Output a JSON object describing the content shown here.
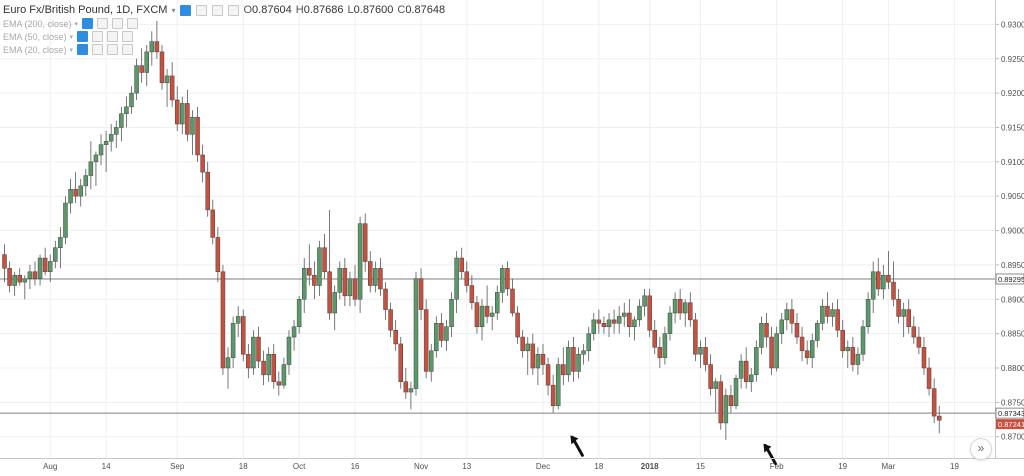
{
  "legend": {
    "symbol": "Euro Fx/British Pound, 1D, FXCM",
    "ohlc": [
      {
        "k": "O",
        "v": "0.87604"
      },
      {
        "k": "H",
        "v": "0.87686"
      },
      {
        "k": "L",
        "v": "0.87600"
      },
      {
        "k": "C",
        "v": "0.87648"
      }
    ],
    "indicators": [
      "EMA (200, close)",
      "EMA (50, close)",
      "EMA (20, close)"
    ]
  },
  "scroll_button": "»",
  "colors": {
    "up": "#5b9a68",
    "down": "#c8503e",
    "grid": "#efefef",
    "axis_text": "#4f4f4f",
    "hline": "#808080",
    "arrow": "#111111"
  },
  "chart_data": {
    "type": "candlestick",
    "title": "Euro Fx/British Pound, 1D, FXCM",
    "ylim": [
      0.8669,
      0.93355
    ],
    "y_ticks": [
      "0.93000",
      "0.92500",
      "0.92000",
      "0.91500",
      "0.91000",
      "0.90500",
      "0.90000",
      "0.89500",
      "0.89000",
      "0.88500",
      "0.88000",
      "0.87500",
      "0.87000"
    ],
    "x_labels": [
      {
        "label": "Aug",
        "index": 9
      },
      {
        "label": "14",
        "index": 20
      },
      {
        "label": "Sep",
        "index": 34
      },
      {
        "label": "18",
        "index": 47
      },
      {
        "label": "Oct",
        "index": 58
      },
      {
        "label": "16",
        "index": 69
      },
      {
        "label": "Nov",
        "index": 82
      },
      {
        "label": "13",
        "index": 91
      },
      {
        "label": "Dec",
        "index": 106
      },
      {
        "label": "18",
        "index": 117
      },
      {
        "label": "2018",
        "index": 127
      },
      {
        "label": "15",
        "index": 137
      },
      {
        "label": "Feb",
        "index": 152
      },
      {
        "label": "19",
        "index": 165
      },
      {
        "label": "Mar",
        "index": 174
      },
      {
        "label": "19",
        "index": 187
      }
    ],
    "horizontal_levels": [
      {
        "value": 0.89295,
        "label": "0.89295"
      },
      {
        "value": 0.87343,
        "label": "0.87343"
      }
    ],
    "last_price": {
      "value": 0.87241,
      "label": "0.87241"
    },
    "candles": [
      [
        0.8965,
        0.898,
        0.8925,
        0.8945
      ],
      [
        0.8945,
        0.8955,
        0.891,
        0.892
      ],
      [
        0.892,
        0.894,
        0.8905,
        0.8935
      ],
      [
        0.8935,
        0.8945,
        0.892,
        0.8925
      ],
      [
        0.8925,
        0.8935,
        0.89,
        0.893
      ],
      [
        0.893,
        0.895,
        0.8915,
        0.894
      ],
      [
        0.894,
        0.8955,
        0.892,
        0.893
      ],
      [
        0.893,
        0.8965,
        0.892,
        0.896
      ],
      [
        0.896,
        0.8975,
        0.8935,
        0.894
      ],
      [
        0.894,
        0.8965,
        0.8925,
        0.8955
      ],
      [
        0.8955,
        0.8985,
        0.8945,
        0.8975
      ],
      [
        0.8975,
        0.9005,
        0.8945,
        0.899
      ],
      [
        0.899,
        0.905,
        0.898,
        0.904
      ],
      [
        0.904,
        0.9075,
        0.9025,
        0.906
      ],
      [
        0.906,
        0.9085,
        0.904,
        0.905
      ],
      [
        0.905,
        0.9075,
        0.9035,
        0.9065
      ],
      [
        0.9065,
        0.909,
        0.905,
        0.908
      ],
      [
        0.908,
        0.913,
        0.906,
        0.91
      ],
      [
        0.91,
        0.9115,
        0.9065,
        0.911
      ],
      [
        0.911,
        0.914,
        0.9095,
        0.9125
      ],
      [
        0.9125,
        0.9145,
        0.9085,
        0.913
      ],
      [
        0.913,
        0.9155,
        0.9115,
        0.914
      ],
      [
        0.914,
        0.916,
        0.912,
        0.915
      ],
      [
        0.915,
        0.918,
        0.913,
        0.917
      ],
      [
        0.917,
        0.9195,
        0.915,
        0.918
      ],
      [
        0.918,
        0.921,
        0.917,
        0.92
      ],
      [
        0.92,
        0.925,
        0.919,
        0.924
      ],
      [
        0.924,
        0.9265,
        0.9215,
        0.923
      ],
      [
        0.923,
        0.927,
        0.921,
        0.926
      ],
      [
        0.926,
        0.929,
        0.924,
        0.9275
      ],
      [
        0.9275,
        0.9305,
        0.925,
        0.926
      ],
      [
        0.926,
        0.927,
        0.9205,
        0.9215
      ],
      [
        0.9215,
        0.9235,
        0.918,
        0.9225
      ],
      [
        0.9225,
        0.9245,
        0.918,
        0.919
      ],
      [
        0.919,
        0.921,
        0.9145,
        0.9155
      ],
      [
        0.9155,
        0.9195,
        0.914,
        0.9185
      ],
      [
        0.9185,
        0.9205,
        0.913,
        0.914
      ],
      [
        0.914,
        0.9175,
        0.911,
        0.9165
      ],
      [
        0.9165,
        0.918,
        0.91,
        0.911
      ],
      [
        0.911,
        0.9125,
        0.907,
        0.9085
      ],
      [
        0.9085,
        0.91,
        0.902,
        0.903
      ],
      [
        0.903,
        0.9045,
        0.898,
        0.899
      ],
      [
        0.899,
        0.9005,
        0.8925,
        0.894
      ],
      [
        0.894,
        0.895,
        0.879,
        0.88
      ],
      [
        0.88,
        0.883,
        0.877,
        0.8815
      ],
      [
        0.8815,
        0.8875,
        0.88,
        0.8865
      ],
      [
        0.8865,
        0.889,
        0.8845,
        0.8875
      ],
      [
        0.8875,
        0.8885,
        0.881,
        0.882
      ],
      [
        0.882,
        0.8835,
        0.8785,
        0.88
      ],
      [
        0.88,
        0.8855,
        0.879,
        0.8845
      ],
      [
        0.8845,
        0.886,
        0.88,
        0.881
      ],
      [
        0.881,
        0.8825,
        0.8775,
        0.879
      ],
      [
        0.879,
        0.883,
        0.878,
        0.882
      ],
      [
        0.882,
        0.8835,
        0.877,
        0.878
      ],
      [
        0.878,
        0.8795,
        0.876,
        0.8775
      ],
      [
        0.8775,
        0.8815,
        0.877,
        0.8805
      ],
      [
        0.8805,
        0.8855,
        0.879,
        0.8845
      ],
      [
        0.8845,
        0.887,
        0.8825,
        0.886
      ],
      [
        0.886,
        0.8905,
        0.885,
        0.89
      ],
      [
        0.89,
        0.896,
        0.888,
        0.8945
      ],
      [
        0.8945,
        0.898,
        0.892,
        0.8935
      ],
      [
        0.8935,
        0.8955,
        0.89,
        0.892
      ],
      [
        0.892,
        0.8985,
        0.8905,
        0.8975
      ],
      [
        0.8975,
        0.8995,
        0.893,
        0.894
      ],
      [
        0.894,
        0.903,
        0.887,
        0.888
      ],
      [
        0.888,
        0.892,
        0.8855,
        0.891
      ],
      [
        0.891,
        0.8955,
        0.89,
        0.8945
      ],
      [
        0.8945,
        0.896,
        0.889,
        0.8905
      ],
      [
        0.8905,
        0.894,
        0.889,
        0.893
      ],
      [
        0.893,
        0.895,
        0.889,
        0.89
      ],
      [
        0.89,
        0.902,
        0.888,
        0.901
      ],
      [
        0.901,
        0.9025,
        0.894,
        0.8955
      ],
      [
        0.8955,
        0.897,
        0.891,
        0.892
      ],
      [
        0.892,
        0.8955,
        0.891,
        0.8945
      ],
      [
        0.8945,
        0.896,
        0.8905,
        0.8915
      ],
      [
        0.8915,
        0.8925,
        0.887,
        0.8885
      ],
      [
        0.8885,
        0.8895,
        0.8845,
        0.8855
      ],
      [
        0.8855,
        0.887,
        0.8825,
        0.8835
      ],
      [
        0.8835,
        0.8845,
        0.877,
        0.878
      ],
      [
        0.878,
        0.88,
        0.8755,
        0.8765
      ],
      [
        0.8765,
        0.878,
        0.874,
        0.877
      ],
      [
        0.877,
        0.894,
        0.876,
        0.893
      ],
      [
        0.893,
        0.8945,
        0.887,
        0.8885
      ],
      [
        0.8885,
        0.89,
        0.8785,
        0.8795
      ],
      [
        0.8795,
        0.8835,
        0.878,
        0.8825
      ],
      [
        0.8825,
        0.8875,
        0.8815,
        0.8865
      ],
      [
        0.8865,
        0.888,
        0.883,
        0.884
      ],
      [
        0.884,
        0.887,
        0.8825,
        0.886
      ],
      [
        0.886,
        0.891,
        0.8845,
        0.89
      ],
      [
        0.89,
        0.897,
        0.888,
        0.896
      ],
      [
        0.896,
        0.8975,
        0.893,
        0.894
      ],
      [
        0.894,
        0.8955,
        0.891,
        0.892
      ],
      [
        0.892,
        0.8935,
        0.8885,
        0.8895
      ],
      [
        0.8895,
        0.8905,
        0.885,
        0.886
      ],
      [
        0.886,
        0.89,
        0.884,
        0.889
      ],
      [
        0.889,
        0.892,
        0.8865,
        0.8875
      ],
      [
        0.8875,
        0.889,
        0.8855,
        0.888
      ],
      [
        0.888,
        0.892,
        0.887,
        0.891
      ],
      [
        0.891,
        0.895,
        0.8895,
        0.8945
      ],
      [
        0.8945,
        0.8955,
        0.8905,
        0.8915
      ],
      [
        0.8915,
        0.893,
        0.8875,
        0.888
      ],
      [
        0.888,
        0.889,
        0.8835,
        0.8845
      ],
      [
        0.8845,
        0.8855,
        0.8815,
        0.8825
      ],
      [
        0.8825,
        0.8845,
        0.879,
        0.8835
      ],
      [
        0.8835,
        0.885,
        0.879,
        0.88
      ],
      [
        0.88,
        0.883,
        0.8775,
        0.882
      ],
      [
        0.882,
        0.8835,
        0.879,
        0.8805
      ],
      [
        0.8805,
        0.8815,
        0.876,
        0.8775
      ],
      [
        0.8775,
        0.879,
        0.8735,
        0.8745
      ],
      [
        0.8745,
        0.8815,
        0.874,
        0.8805
      ],
      [
        0.8805,
        0.883,
        0.8775,
        0.879
      ],
      [
        0.879,
        0.884,
        0.878,
        0.883
      ],
      [
        0.883,
        0.8845,
        0.878,
        0.8795
      ],
      [
        0.8795,
        0.883,
        0.8785,
        0.882
      ],
      [
        0.882,
        0.8835,
        0.8805,
        0.8825
      ],
      [
        0.8825,
        0.886,
        0.881,
        0.885
      ],
      [
        0.885,
        0.888,
        0.884,
        0.887
      ],
      [
        0.887,
        0.8885,
        0.885,
        0.8865
      ],
      [
        0.8865,
        0.8875,
        0.885,
        0.886
      ],
      [
        0.886,
        0.888,
        0.8845,
        0.887
      ],
      [
        0.887,
        0.8885,
        0.885,
        0.8865
      ],
      [
        0.8865,
        0.889,
        0.885,
        0.8875
      ],
      [
        0.8875,
        0.8895,
        0.886,
        0.888
      ],
      [
        0.888,
        0.89,
        0.8845,
        0.886
      ],
      [
        0.886,
        0.8875,
        0.884,
        0.887
      ],
      [
        0.887,
        0.89,
        0.886,
        0.889
      ],
      [
        0.889,
        0.8915,
        0.8875,
        0.8905
      ],
      [
        0.8905,
        0.8915,
        0.8845,
        0.8855
      ],
      [
        0.8855,
        0.887,
        0.882,
        0.883
      ],
      [
        0.883,
        0.8845,
        0.88,
        0.8815
      ],
      [
        0.8815,
        0.886,
        0.8805,
        0.885
      ],
      [
        0.885,
        0.889,
        0.884,
        0.888
      ],
      [
        0.888,
        0.891,
        0.8865,
        0.89
      ],
      [
        0.89,
        0.8915,
        0.887,
        0.888
      ],
      [
        0.888,
        0.89,
        0.886,
        0.8895
      ],
      [
        0.8895,
        0.891,
        0.886,
        0.887
      ],
      [
        0.887,
        0.888,
        0.881,
        0.882
      ],
      [
        0.882,
        0.884,
        0.88,
        0.883
      ],
      [
        0.883,
        0.8845,
        0.8795,
        0.8805
      ],
      [
        0.8805,
        0.882,
        0.876,
        0.877
      ],
      [
        0.877,
        0.8785,
        0.8735,
        0.878
      ],
      [
        0.878,
        0.879,
        0.871,
        0.872
      ],
      [
        0.872,
        0.877,
        0.8695,
        0.876
      ],
      [
        0.876,
        0.8775,
        0.8735,
        0.8745
      ],
      [
        0.8745,
        0.879,
        0.874,
        0.8785
      ],
      [
        0.8785,
        0.882,
        0.877,
        0.881
      ],
      [
        0.881,
        0.883,
        0.877,
        0.878
      ],
      [
        0.878,
        0.88,
        0.8765,
        0.879
      ],
      [
        0.879,
        0.884,
        0.878,
        0.883
      ],
      [
        0.883,
        0.8875,
        0.882,
        0.8865
      ],
      [
        0.8865,
        0.888,
        0.883,
        0.8845
      ],
      [
        0.8845,
        0.886,
        0.879,
        0.88
      ],
      [
        0.88,
        0.886,
        0.8795,
        0.885
      ],
      [
        0.885,
        0.888,
        0.8835,
        0.887
      ],
      [
        0.887,
        0.8895,
        0.8855,
        0.8885
      ],
      [
        0.8885,
        0.89,
        0.885,
        0.8865
      ],
      [
        0.8865,
        0.888,
        0.8835,
        0.8845
      ],
      [
        0.8845,
        0.886,
        0.881,
        0.8825
      ],
      [
        0.8825,
        0.884,
        0.8805,
        0.8815
      ],
      [
        0.8815,
        0.885,
        0.88,
        0.884
      ],
      [
        0.884,
        0.887,
        0.883,
        0.8865
      ],
      [
        0.8865,
        0.89,
        0.8855,
        0.889
      ],
      [
        0.889,
        0.891,
        0.8865,
        0.8875
      ],
      [
        0.8875,
        0.8895,
        0.886,
        0.8885
      ],
      [
        0.8885,
        0.89,
        0.8845,
        0.8855
      ],
      [
        0.8855,
        0.887,
        0.8815,
        0.8825
      ],
      [
        0.8825,
        0.884,
        0.88,
        0.883
      ],
      [
        0.883,
        0.8845,
        0.8795,
        0.8805
      ],
      [
        0.8805,
        0.883,
        0.879,
        0.882
      ],
      [
        0.882,
        0.887,
        0.881,
        0.886
      ],
      [
        0.886,
        0.891,
        0.885,
        0.89
      ],
      [
        0.89,
        0.8955,
        0.888,
        0.894
      ],
      [
        0.894,
        0.896,
        0.8905,
        0.8915
      ],
      [
        0.8915,
        0.895,
        0.89,
        0.8935
      ],
      [
        0.8935,
        0.897,
        0.8915,
        0.8925
      ],
      [
        0.8925,
        0.8955,
        0.889,
        0.89
      ],
      [
        0.89,
        0.8915,
        0.8865,
        0.8875
      ],
      [
        0.8875,
        0.8895,
        0.8845,
        0.8885
      ],
      [
        0.8885,
        0.89,
        0.885,
        0.886
      ],
      [
        0.886,
        0.8875,
        0.8835,
        0.8845
      ],
      [
        0.8845,
        0.886,
        0.882,
        0.883
      ],
      [
        0.883,
        0.8845,
        0.879,
        0.88
      ],
      [
        0.88,
        0.8815,
        0.876,
        0.877
      ],
      [
        0.877,
        0.8785,
        0.872,
        0.873
      ],
      [
        0.873,
        0.8745,
        0.8705,
        0.8724
      ]
    ],
    "annotations": [
      {
        "type": "arrow",
        "pointing": "up-left",
        "candle_index": 111,
        "value": 0.8702
      },
      {
        "type": "arrow",
        "pointing": "up-left",
        "candle_index": 149,
        "value": 0.869
      }
    ]
  }
}
